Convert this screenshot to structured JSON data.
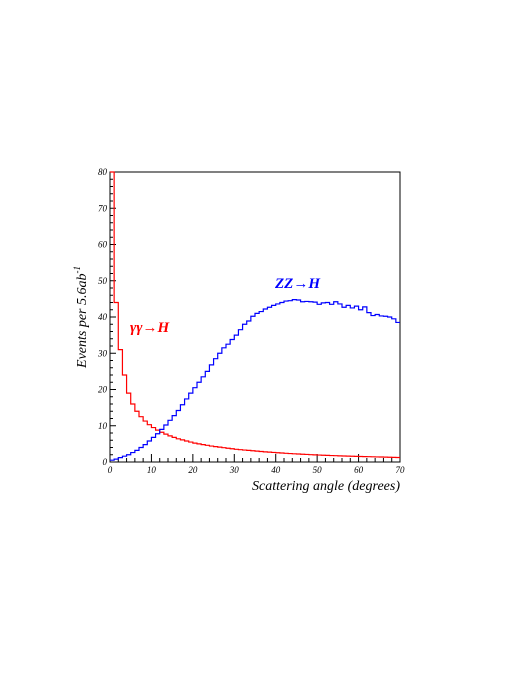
{
  "chart_data": {
    "type": "line",
    "xlabel": "Scattering angle (degrees)",
    "ylabel": "Events per 5.6ab",
    "ylabel_sup": "-1",
    "xlim": [
      0,
      70
    ],
    "ylim": [
      0,
      80
    ],
    "xticks": [
      0,
      10,
      20,
      30,
      40,
      50,
      60,
      70
    ],
    "yticks": [
      0,
      10,
      20,
      30,
      40,
      50,
      60,
      70,
      80
    ],
    "grid": false,
    "bin_width": 1,
    "series": [
      {
        "name": "γγ→H",
        "color": "#ff0000",
        "values": [
          80,
          44,
          31,
          24,
          19,
          16,
          14,
          12.5,
          11.3,
          10.3,
          9.5,
          8.8,
          8.2,
          7.7,
          7.2,
          6.8,
          6.4,
          6.1,
          5.8,
          5.5,
          5.2,
          5.0,
          4.8,
          4.6,
          4.4,
          4.25,
          4.1,
          3.95,
          3.8,
          3.65,
          3.5,
          3.4,
          3.3,
          3.2,
          3.1,
          3.0,
          2.9,
          2.8,
          2.72,
          2.64,
          2.56,
          2.48,
          2.4,
          2.33,
          2.26,
          2.2,
          2.14,
          2.08,
          2.02,
          1.97,
          1.92,
          1.87,
          1.82,
          1.78,
          1.74,
          1.7,
          1.66,
          1.62,
          1.58,
          1.55,
          1.52,
          1.49,
          1.46,
          1.43,
          1.4,
          1.37,
          1.34,
          1.31,
          1.28,
          1.25
        ]
      },
      {
        "name": "ZZ→H",
        "color": "#0000ff",
        "values": [
          0.5,
          0.8,
          1.2,
          1.6,
          2.0,
          2.6,
          3.2,
          4.0,
          4.8,
          5.8,
          6.8,
          7.8,
          9.0,
          10.2,
          11.5,
          12.8,
          14.2,
          15.8,
          17.4,
          19.0,
          20.5,
          22.0,
          23.5,
          25.0,
          26.8,
          28.5,
          30.0,
          31.5,
          32.5,
          33.8,
          35.0,
          36.5,
          38.0,
          38.9,
          40.2,
          41.0,
          41.5,
          42.2,
          42.7,
          43.2,
          43.6,
          44.0,
          44.4,
          44.5,
          44.8,
          44.7,
          44.2,
          44.3,
          44.2,
          44.1,
          43.5,
          43.9,
          44.0,
          43.5,
          44.2,
          43.6,
          42.7,
          43.2,
          42.5,
          43.0,
          42.0,
          42.8,
          41.2,
          40.4,
          40.7,
          40.3,
          40.2,
          40.0,
          39.5,
          38.5
        ]
      }
    ]
  }
}
